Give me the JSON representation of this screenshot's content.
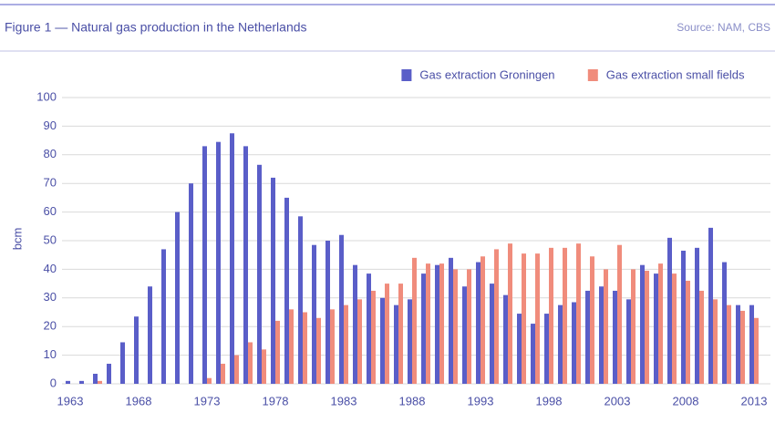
{
  "chart_data": {
    "type": "bar",
    "title": "Figure 1 — Natural gas production in the Netherlands",
    "source": "Source: NAM, CBS",
    "y_label": "bcm",
    "x": [
      1963,
      1964,
      1965,
      1966,
      1967,
      1968,
      1969,
      1970,
      1971,
      1972,
      1973,
      1974,
      1975,
      1976,
      1977,
      1978,
      1979,
      1980,
      1981,
      1982,
      1983,
      1984,
      1985,
      1986,
      1987,
      1988,
      1989,
      1990,
      1991,
      1992,
      1993,
      1994,
      1995,
      1996,
      1997,
      1998,
      1999,
      2000,
      2001,
      2002,
      2003,
      2004,
      2005,
      2006,
      2007,
      2008,
      2009,
      2010,
      2011,
      2012,
      2013
    ],
    "series": [
      {
        "name": "Gas extraction Groningen",
        "color": "#5a5ec8",
        "values": [
          1,
          1,
          3.5,
          7,
          14.5,
          23.5,
          34,
          47,
          60,
          70,
          83,
          84.5,
          87.5,
          83,
          76.5,
          72,
          65,
          58.5,
          48.5,
          50,
          52,
          41.5,
          38.5,
          30,
          27.5,
          29.5,
          38.5,
          41.5,
          44,
          34,
          42.5,
          35,
          31,
          24.5,
          21,
          24.5,
          27.5,
          28.5,
          32.5,
          34,
          32.5,
          29.5,
          41.5,
          38.5,
          51,
          46.5,
          47.5,
          54.5,
          42.5,
          27.5,
          27.5
        ]
      },
      {
        "name": "Gas extraction small fields",
        "color": "#f08c7c",
        "values": [
          0,
          0,
          1,
          0,
          0,
          0,
          0,
          0,
          0,
          0,
          2,
          7,
          10,
          14.5,
          12,
          22,
          26,
          25,
          23,
          26,
          27.5,
          29.5,
          32.5,
          35,
          35,
          44,
          42,
          42,
          40,
          40,
          44.5,
          47,
          49,
          45.5,
          45.5,
          47.5,
          47.5,
          49,
          44.5,
          40,
          48.5,
          40,
          39.5,
          42,
          38.5,
          36,
          32.5,
          29.5,
          27.5,
          25.5,
          23
        ]
      }
    ],
    "xlim": [
      1962.5,
      2013.5
    ],
    "xticks": [
      1963,
      1968,
      1973,
      1978,
      1983,
      1988,
      1993,
      1998,
      2003,
      2008,
      2013
    ],
    "ylim": [
      0,
      100
    ],
    "yticks": [
      0,
      10,
      20,
      30,
      40,
      50,
      60,
      70,
      80,
      90,
      100
    ],
    "grid": true,
    "legend": "top-right"
  }
}
